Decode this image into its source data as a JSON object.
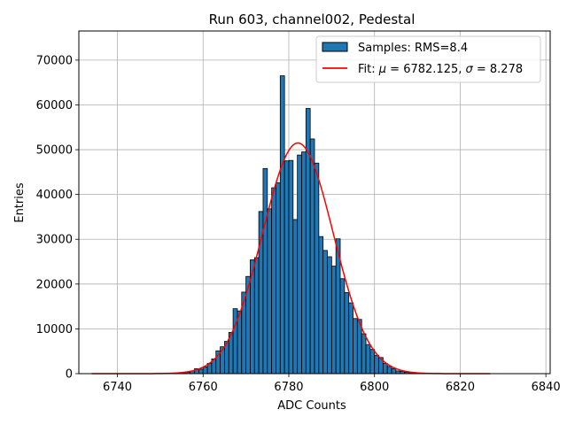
{
  "chart_data": {
    "type": "bar",
    "title": "Run 603, channel002, Pedestal",
    "xlabel": "ADC Counts",
    "ylabel": "Entries",
    "xlim": [
      6731,
      6841
    ],
    "ylim": [
      0,
      76500
    ],
    "xticks": [
      6740,
      6760,
      6780,
      6800,
      6820,
      6840
    ],
    "yticks": [
      0,
      10000,
      20000,
      30000,
      40000,
      50000,
      60000,
      70000
    ],
    "grid": true,
    "legend_position": "top-right",
    "bin_width": 1,
    "colors": {
      "bars": "#1f77b4",
      "bar_edge": "#000000",
      "fit": "#ff0000",
      "grid": "#b0b0b0"
    },
    "series": [
      {
        "name": "Samples: RMS=8.4",
        "type": "histogram",
        "bin_starts": [
          6754,
          6755,
          6756,
          6757,
          6758,
          6759,
          6760,
          6761,
          6762,
          6763,
          6764,
          6765,
          6766,
          6767,
          6768,
          6769,
          6770,
          6771,
          6772,
          6773,
          6774,
          6775,
          6776,
          6777,
          6778,
          6779,
          6780,
          6781,
          6782,
          6783,
          6784,
          6785,
          6786,
          6787,
          6788,
          6789,
          6790,
          6791,
          6792,
          6793,
          6794,
          6795,
          6796,
          6797,
          6798,
          6799,
          6800,
          6801,
          6802,
          6803,
          6804,
          6805,
          6806,
          6807,
          6808,
          6809,
          6810
        ],
        "values": [
          100,
          200,
          300,
          600,
          1100,
          1000,
          1500,
          2300,
          3300,
          5100,
          6000,
          7200,
          9200,
          14500,
          14000,
          18200,
          21700,
          25400,
          25900,
          36200,
          45800,
          36800,
          41500,
          42600,
          66500,
          47500,
          47600,
          34400,
          48800,
          49500,
          59200,
          52400,
          47000,
          30600,
          27500,
          26100,
          24000,
          30100,
          21200,
          18100,
          15800,
          12300,
          12100,
          8900,
          6500,
          5400,
          4100,
          3600,
          2300,
          1600,
          1100,
          600,
          500,
          300,
          200,
          100,
          50
        ]
      },
      {
        "name": "Fit: μ = 6782.125, σ = 8.278",
        "legend_prefix": "Fit: ",
        "legend_mu_symbol": "μ",
        "legend_mu_value": " = 6782.125, ",
        "legend_sigma_symbol": "σ",
        "legend_sigma_value": " = 8.278",
        "type": "gaussian_fit",
        "mu": 6782.125,
        "sigma": 8.278,
        "amplitude": 51500,
        "x_range": [
          6734,
          6827
        ]
      }
    ]
  }
}
